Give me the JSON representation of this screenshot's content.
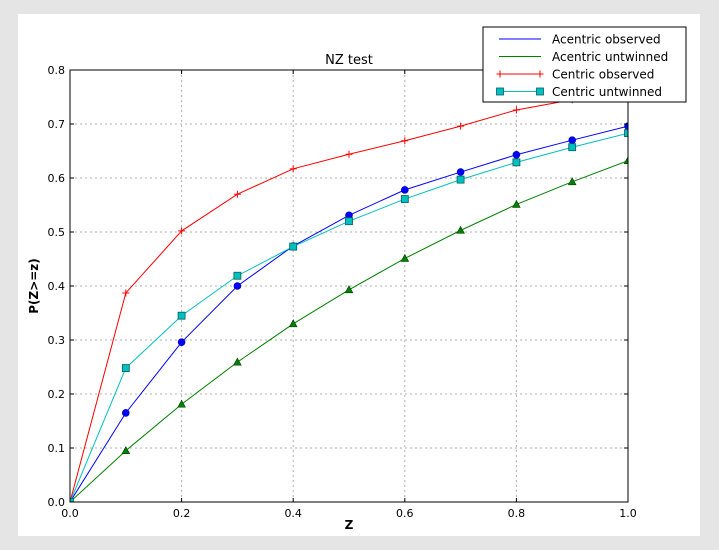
{
  "chart_data": {
    "type": "line",
    "title": "NZ test",
    "xlabel": "Z",
    "ylabel": "P(Z>=z)",
    "xlim": [
      0.0,
      1.0
    ],
    "ylim": [
      0.0,
      0.8
    ],
    "xticks": [
      "0.0",
      "0.2",
      "0.4",
      "0.6",
      "0.8",
      "1.0"
    ],
    "yticks": [
      "0.0",
      "0.1",
      "0.2",
      "0.3",
      "0.4",
      "0.5",
      "0.6",
      "0.7",
      "0.8"
    ],
    "grid": true,
    "legend_position": "top-right",
    "x": [
      0.0,
      0.1,
      0.2,
      0.3,
      0.4,
      0.5,
      0.6,
      0.7,
      0.8,
      0.9,
      1.0
    ],
    "series": [
      {
        "name": "Acentric observed",
        "color": "#0000ff",
        "marker": "circle",
        "values": [
          0.0,
          0.165,
          0.296,
          0.4,
          0.474,
          0.531,
          0.578,
          0.611,
          0.643,
          0.67,
          0.696
        ]
      },
      {
        "name": "Acentric untwinned",
        "color": "#008000",
        "marker": "triangle",
        "values": [
          0.0,
          0.095,
          0.181,
          0.259,
          0.33,
          0.393,
          0.451,
          0.503,
          0.551,
          0.593,
          0.632
        ]
      },
      {
        "name": "Centric observed",
        "color": "#ff0000",
        "marker": "plus",
        "values": [
          0.0,
          0.387,
          0.502,
          0.57,
          0.617,
          0.644,
          0.669,
          0.696,
          0.726,
          0.745,
          0.765
        ]
      },
      {
        "name": "Centric untwinned",
        "color": "#00bfbf",
        "marker": "square",
        "values": [
          0.0,
          0.248,
          0.345,
          0.419,
          0.473,
          0.52,
          0.561,
          0.597,
          0.629,
          0.657,
          0.683
        ]
      }
    ]
  }
}
